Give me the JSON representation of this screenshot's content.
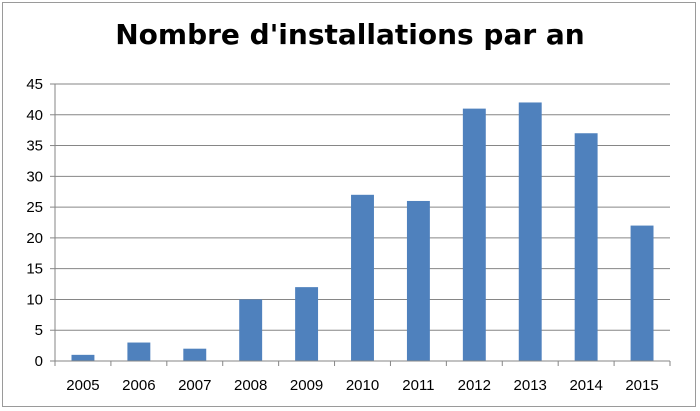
{
  "chart_data": {
    "type": "bar",
    "title": "Nombre d'installations par an",
    "categories": [
      "2005",
      "2006",
      "2007",
      "2008",
      "2009",
      "2010",
      "2011",
      "2012",
      "2013",
      "2014",
      "2015"
    ],
    "values": [
      1,
      3,
      2,
      10,
      12,
      27,
      26,
      41,
      42,
      37,
      22
    ],
    "ylim": [
      0,
      45
    ],
    "yticks": [
      0,
      5,
      10,
      15,
      20,
      25,
      30,
      35,
      40,
      45
    ],
    "grid": true,
    "bar_color": "#4f81bd",
    "grid_color": "#868686"
  }
}
